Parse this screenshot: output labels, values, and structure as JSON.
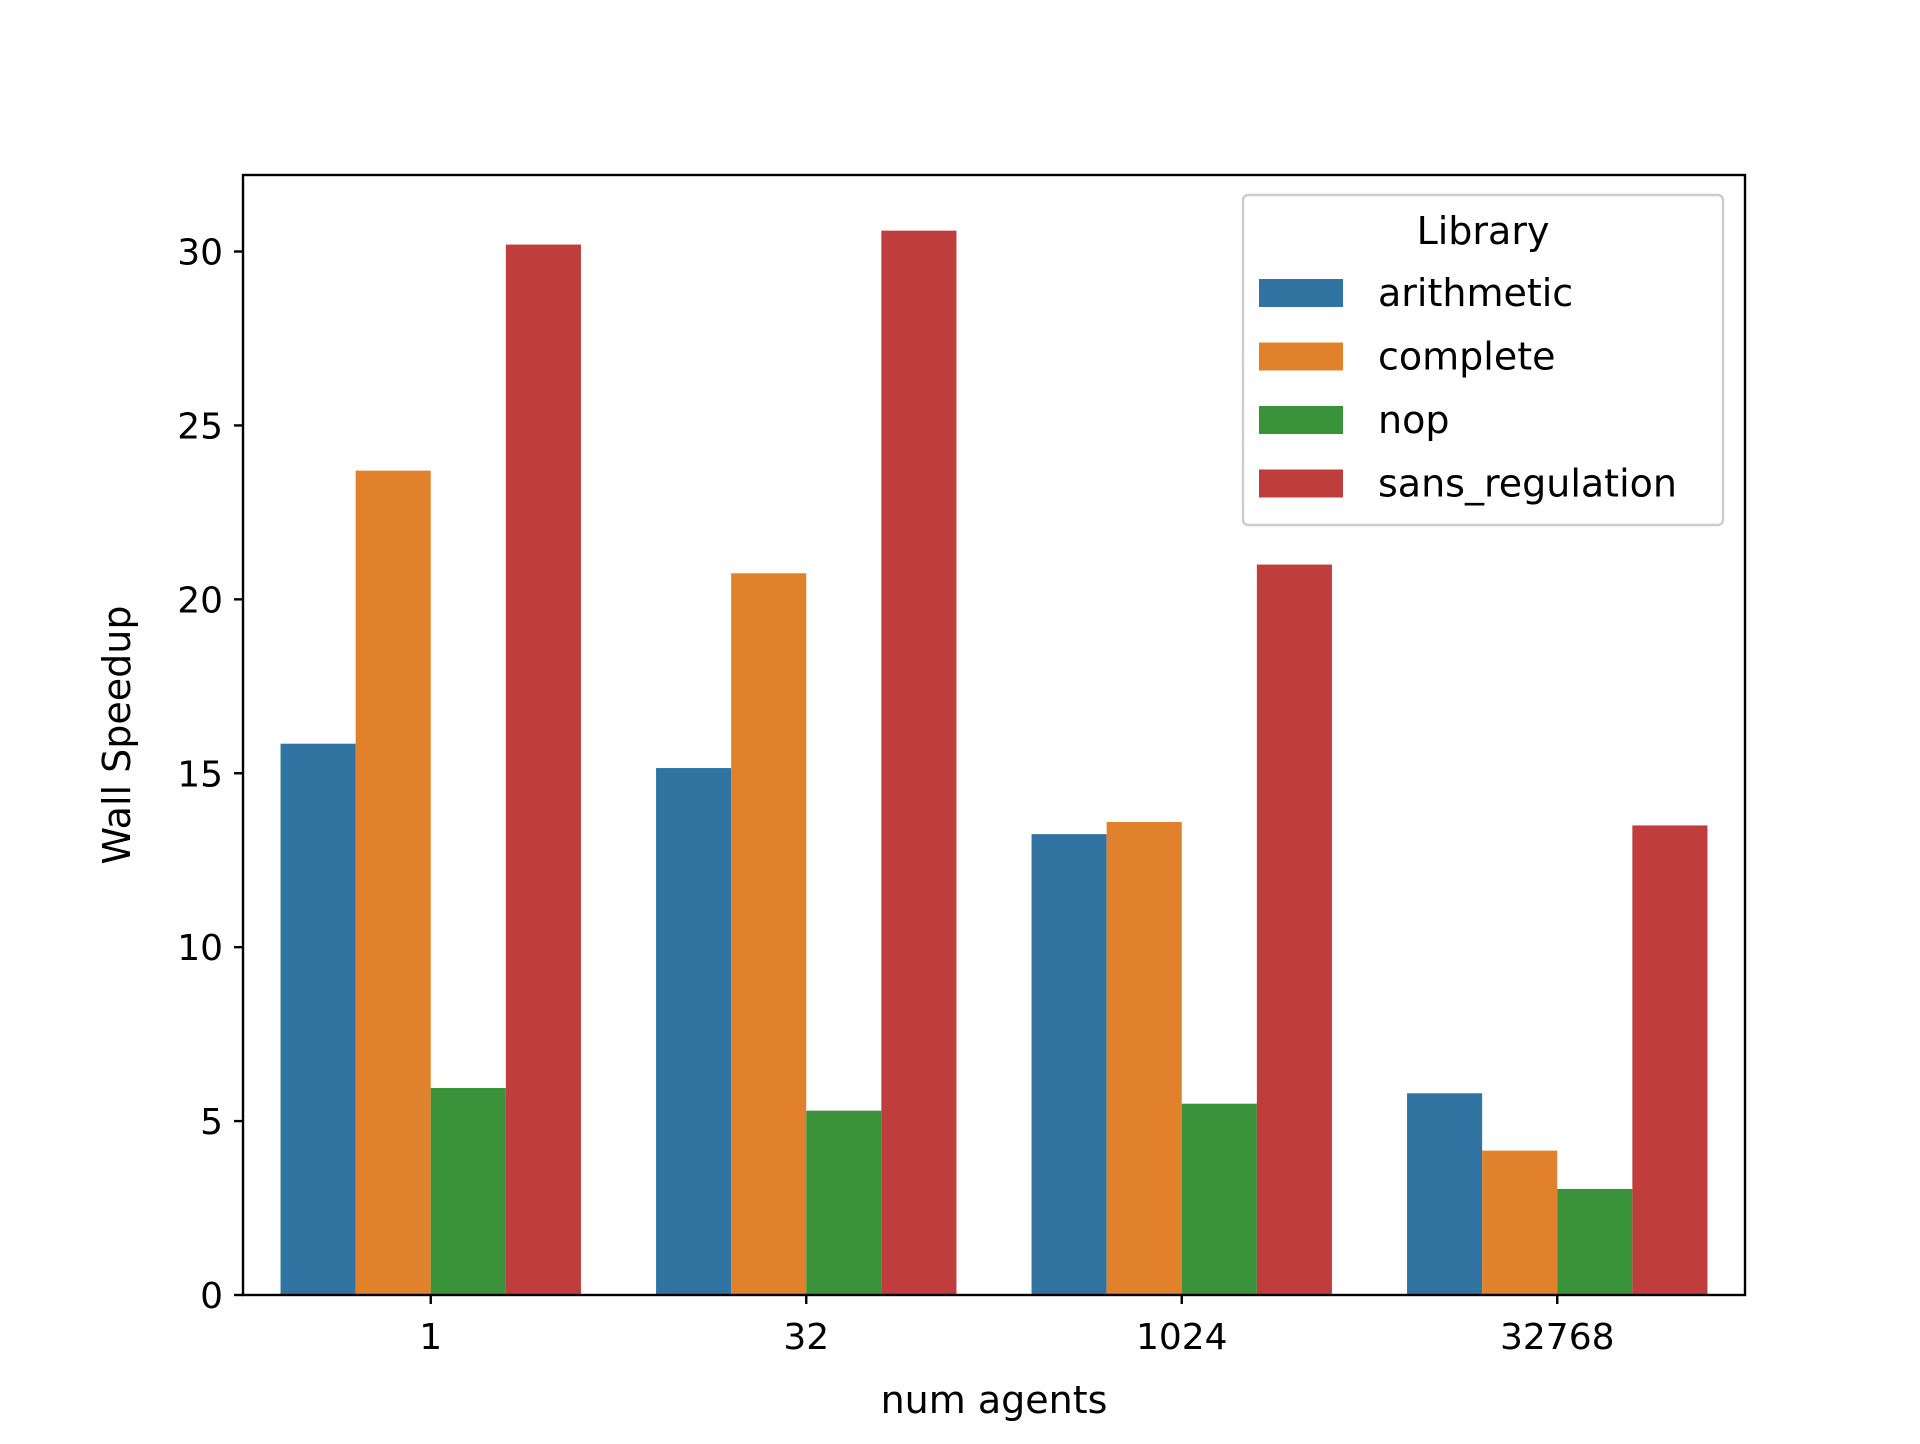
{
  "chart_data": {
    "type": "bar",
    "title": "",
    "xlabel": "num agents",
    "ylabel": "Wall Speedup",
    "categories": [
      "1",
      "32",
      "1024",
      "32768"
    ],
    "ylim": [
      0,
      32.2
    ],
    "yticks": [
      0,
      5,
      10,
      15,
      20,
      25,
      30
    ],
    "grid": false,
    "legend": {
      "title": "Library",
      "placement": "top-right"
    },
    "series": [
      {
        "name": "arithmetic",
        "color": "#3274a1",
        "values": [
          15.85,
          15.15,
          13.25,
          5.8
        ]
      },
      {
        "name": "complete",
        "color": "#e1812c",
        "values": [
          23.7,
          20.75,
          13.6,
          4.15
        ]
      },
      {
        "name": "nop",
        "color": "#3a923a",
        "values": [
          5.95,
          5.3,
          5.5,
          3.05
        ]
      },
      {
        "name": "sans_regulation",
        "color": "#c03d3e",
        "values": [
          30.2,
          30.6,
          21.0,
          13.5
        ]
      }
    ]
  }
}
